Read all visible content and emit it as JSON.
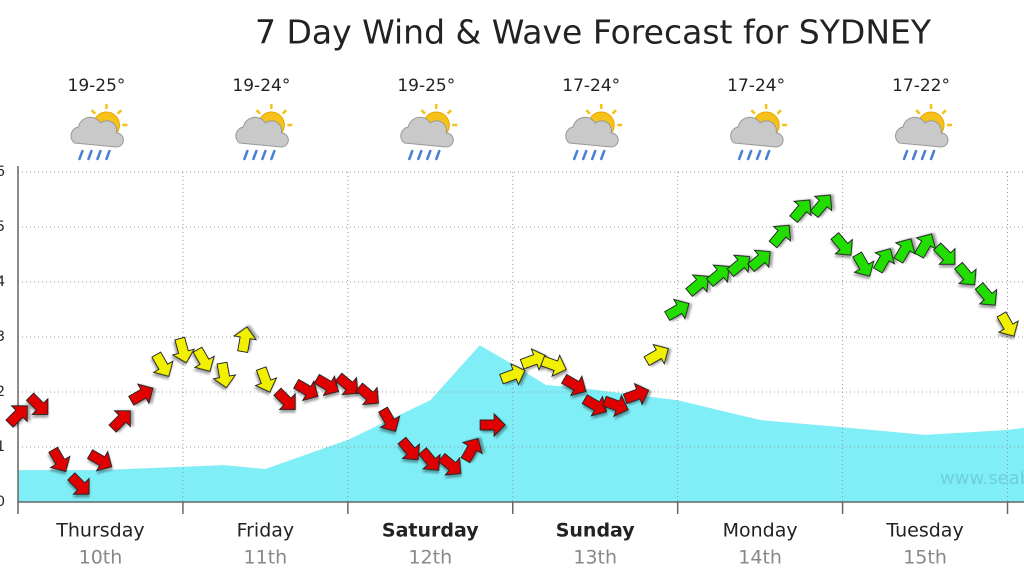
{
  "chart_data": {
    "type": "wind-wave",
    "title": "7 Day Wind & Wave Forecast for SYDNEY",
    "categories": [
      "Thursday",
      "Friday",
      "Saturday",
      "Sunday",
      "Monday",
      "Tuesday"
    ],
    "dates": [
      "10th",
      "11th",
      "12th",
      "13th",
      "14th",
      "15th"
    ],
    "temperatures": [
      "19-25°",
      "19-24°",
      "19-25°",
      "17-24°",
      "17-24°",
      "17-22°"
    ],
    "xlim": [
      0,
      6.1
    ],
    "xticks": [
      0,
      1,
      2,
      3,
      4,
      5,
      6
    ],
    "ylim": [
      0,
      6
    ],
    "yticks": [
      0,
      1,
      2,
      3,
      4,
      5,
      6
    ],
    "grid": true,
    "watermark": "www.seabre",
    "wave": {
      "color": "#80eef6",
      "x": [
        0,
        0.5,
        1,
        1.25,
        1.5,
        2,
        2.5,
        2.8,
        3,
        3.2,
        3.5,
        4,
        4.5,
        5,
        5.5,
        6,
        6.1
      ],
      "values": [
        0.58,
        0.58,
        0.64,
        0.67,
        0.6,
        1.13,
        1.85,
        2.85,
        2.5,
        2.13,
        2.04,
        1.85,
        1.49,
        1.36,
        1.22,
        1.31,
        1.35
      ]
    },
    "wind": {
      "x": [
        0,
        0.125,
        0.25,
        0.375,
        0.5,
        0.625,
        0.75,
        0.875,
        1,
        1.125,
        1.25,
        1.375,
        1.5,
        1.625,
        1.75,
        1.875,
        2,
        2.125,
        2.25,
        2.375,
        2.5,
        2.625,
        2.75,
        2.875,
        3,
        3.125,
        3.25,
        3.375,
        3.5,
        3.625,
        3.75,
        3.875,
        4,
        4.125,
        4.25,
        4.375,
        4.5,
        4.625,
        4.75,
        4.875,
        5,
        5.125,
        5.25,
        5.375,
        5.5,
        5.625,
        5.75,
        5.875,
        6
      ],
      "values": [
        1.58,
        1.76,
        0.76,
        0.31,
        0.76,
        1.49,
        1.95,
        2.49,
        2.76,
        2.58,
        2.31,
        2.95,
        2.22,
        1.85,
        2.04,
        2.13,
        2.13,
        1.95,
        1.49,
        0.95,
        0.76,
        0.67,
        0.95,
        1.4,
        2.31,
        2.58,
        2.49,
        2.13,
        1.76,
        1.76,
        1.95,
        2.67,
        3.49,
        3.95,
        4.13,
        4.31,
        4.4,
        4.85,
        5.31,
        5.4,
        4.67,
        4.31,
        4.4,
        4.58,
        4.67,
        4.49,
        4.13,
        3.76,
        3.22
      ],
      "directions": [
        -45,
        45,
        60,
        45,
        30,
        -45,
        -30,
        60,
        75,
        60,
        80,
        -80,
        70,
        45,
        30,
        30,
        40,
        40,
        60,
        50,
        50,
        40,
        -60,
        0,
        -20,
        -20,
        20,
        30,
        30,
        20,
        -20,
        -30,
        -30,
        -40,
        -40,
        -40,
        -40,
        -50,
        -50,
        -50,
        50,
        60,
        -60,
        -60,
        -60,
        45,
        50,
        50,
        60
      ],
      "colors": [
        "#e00000",
        "#e00000",
        "#e00000",
        "#e00000",
        "#e00000",
        "#e00000",
        "#e00000",
        "#f0f000",
        "#f0f000",
        "#f0f000",
        "#f0f000",
        "#f0f000",
        "#f0f000",
        "#e00000",
        "#e00000",
        "#e00000",
        "#e00000",
        "#e00000",
        "#e00000",
        "#e00000",
        "#e00000",
        "#e00000",
        "#e00000",
        "#e00000",
        "#f0f000",
        "#f0f000",
        "#f0f000",
        "#e00000",
        "#e00000",
        "#e00000",
        "#e00000",
        "#f0f000",
        "#22dd00",
        "#22dd00",
        "#22dd00",
        "#22dd00",
        "#22dd00",
        "#22dd00",
        "#22dd00",
        "#22dd00",
        "#22dd00",
        "#22dd00",
        "#22dd00",
        "#22dd00",
        "#22dd00",
        "#22dd00",
        "#22dd00",
        "#22dd00",
        "#f0f000"
      ]
    }
  }
}
